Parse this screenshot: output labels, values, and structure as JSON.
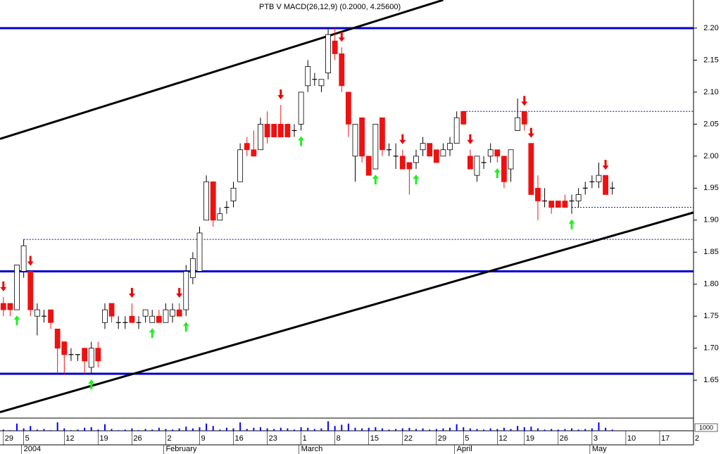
{
  "chart_data": {
    "type": "candlestick",
    "title": "PTB V MACD(26,12,9) (0.2000, 4.25600)",
    "xlim": [
      -0.5,
      102
    ],
    "xticks": [
      {
        "value": 0,
        "label": "29"
      },
      {
        "value": 3,
        "label": "5"
      },
      {
        "value": 9,
        "label": "12"
      },
      {
        "value": 14,
        "label": "19"
      },
      {
        "value": 19,
        "label": "26"
      },
      {
        "value": 24,
        "label": "2"
      },
      {
        "value": 29,
        "label": "9"
      },
      {
        "value": 34,
        "label": "16"
      },
      {
        "value": 39,
        "label": "23"
      },
      {
        "value": 44,
        "label": "1"
      },
      {
        "value": 49,
        "label": "8"
      },
      {
        "value": 54,
        "label": "15"
      },
      {
        "value": 59,
        "label": "22"
      },
      {
        "value": 64,
        "label": "29"
      },
      {
        "value": 68,
        "label": "5"
      },
      {
        "value": 73,
        "label": "12"
      },
      {
        "value": 77,
        "label": "19"
      },
      {
        "value": 82,
        "label": "26"
      },
      {
        "value": 87,
        "label": "3"
      },
      {
        "value": 92,
        "label": "10"
      },
      {
        "value": 97,
        "label": "17"
      },
      {
        "value": 102,
        "label": "2"
      }
    ],
    "months": [
      {
        "value": 3,
        "label": "2004"
      },
      {
        "value": 24,
        "label": "February"
      },
      {
        "value": 44,
        "label": "March"
      },
      {
        "value": 67,
        "label": "April"
      },
      {
        "value": 87,
        "label": "May"
      }
    ],
    "ylim": [
      1.6,
      2.24
    ],
    "yticks": [
      {
        "value": 2.2,
        "label": "2.20"
      },
      2.15,
      {
        "value": 2.1,
        "label": "2.10"
      },
      2.05,
      {
        "value": 2.0,
        "label": "2.00"
      },
      1.95,
      {
        "value": 1.9,
        "label": "1.90"
      },
      1.85,
      {
        "value": 1.8,
        "label": "1.80"
      },
      1.75,
      {
        "value": 1.7,
        "label": "1.70"
      },
      1.65
    ],
    "up_color": "#ffffff",
    "down_color": "#ee1111",
    "open": [
      1.77,
      1.77,
      1.76,
      1.82,
      1.82,
      1.75,
      1.75,
      1.76,
      1.73,
      1.71,
      1.69,
      1.69,
      1.7,
      1.67,
      1.7,
      1.74,
      1.77,
      1.74,
      1.74,
      1.75,
      1.74,
      1.75,
      1.74,
      1.75,
      1.74,
      1.75,
      1.76,
      1.76,
      1.81,
      1.82,
      1.9,
      1.96,
      1.9,
      1.92,
      1.93,
      1.96,
      2.02,
      2.01,
      2.01,
      2.05,
      2.05,
      2.05,
      2.05,
      2.04,
      2.05,
      2.11,
      2.12,
      2.11,
      2.13,
      2.18,
      2.16,
      2.1,
      2.0,
      2.06,
      2.0,
      1.98,
      2.06,
      2.01,
      2.0,
      2.0,
      1.99,
      1.99,
      2.01,
      2.02,
      2.01,
      2.0,
      2.01,
      2.02,
      2.07,
      2.0,
      1.97,
      1.99,
      2.0,
      2.01,
      2.0,
      1.98,
      2.04,
      2.07,
      2.02,
      1.95,
      1.93,
      1.93,
      1.93,
      1.93,
      1.93,
      1.93,
      1.95,
      1.96,
      1.96,
      1.97,
      1.95
    ],
    "high": [
      1.78,
      1.77,
      1.83,
      1.87,
      1.82,
      1.77,
      1.76,
      1.76,
      1.73,
      1.71,
      1.7,
      1.69,
      1.7,
      1.71,
      1.71,
      1.77,
      1.77,
      1.75,
      1.75,
      1.77,
      1.75,
      1.76,
      1.76,
      1.76,
      1.77,
      1.77,
      1.77,
      1.83,
      1.85,
      1.89,
      1.97,
      1.96,
      1.92,
      1.93,
      1.96,
      2.02,
      2.03,
      2.04,
      2.06,
      2.07,
      2.05,
      2.08,
      2.05,
      2.05,
      2.1,
      2.15,
      2.13,
      2.12,
      2.2,
      2.2,
      2.17,
      2.1,
      2.05,
      2.06,
      2.0,
      2.05,
      2.06,
      2.02,
      2.02,
      2.01,
      1.99,
      2.01,
      2.03,
      2.02,
      2.01,
      2.02,
      2.03,
      2.07,
      2.07,
      2.01,
      2.0,
      2.0,
      2.02,
      2.01,
      2.0,
      2.01,
      2.09,
      2.07,
      2.02,
      1.97,
      1.95,
      1.93,
      1.93,
      1.94,
      1.94,
      1.95,
      1.96,
      1.97,
      1.99,
      1.97,
      1.96
    ],
    "low": [
      1.75,
      1.75,
      1.76,
      1.81,
      1.75,
      1.72,
      1.74,
      1.73,
      1.66,
      1.66,
      1.68,
      1.68,
      1.66,
      1.66,
      1.67,
      1.73,
      1.74,
      1.73,
      1.73,
      1.74,
      1.73,
      1.74,
      1.74,
      1.74,
      1.74,
      1.74,
      1.75,
      1.75,
      1.8,
      1.82,
      1.9,
      1.89,
      1.9,
      1.91,
      1.92,
      1.96,
      2.0,
      2.0,
      2.01,
      2.02,
      2.03,
      2.03,
      2.03,
      2.03,
      2.04,
      2.1,
      2.11,
      2.1,
      2.12,
      2.15,
      2.1,
      2.03,
      1.96,
      1.99,
      1.97,
      1.98,
      2.0,
      2.0,
      1.98,
      1.98,
      1.94,
      1.98,
      2.0,
      2.0,
      1.99,
      2.0,
      2.0,
      2.02,
      2.05,
      1.98,
      1.96,
      1.98,
      1.99,
      1.99,
      1.95,
      1.96,
      2.04,
      2.04,
      1.94,
      1.9,
      1.92,
      1.91,
      1.92,
      1.92,
      1.91,
      1.92,
      1.94,
      1.95,
      1.95,
      1.94,
      1.94
    ],
    "close": [
      1.76,
      1.76,
      1.83,
      1.86,
      1.76,
      1.76,
      1.75,
      1.74,
      1.7,
      1.69,
      1.69,
      1.69,
      1.68,
      1.7,
      1.68,
      1.76,
      1.75,
      1.74,
      1.74,
      1.74,
      1.74,
      1.76,
      1.75,
      1.74,
      1.76,
      1.76,
      1.75,
      1.82,
      1.84,
      1.88,
      1.96,
      1.9,
      1.91,
      1.92,
      1.95,
      2.01,
      2.01,
      2.0,
      2.05,
      2.03,
      2.03,
      2.03,
      2.03,
      2.04,
      2.1,
      2.14,
      2.12,
      2.12,
      2.19,
      2.16,
      2.11,
      2.05,
      2.05,
      2.0,
      1.97,
      2.05,
      2.01,
      2.01,
      2.0,
      1.98,
      1.98,
      2.0,
      2.02,
      2.0,
      1.99,
      2.01,
      2.02,
      2.06,
      2.05,
      1.98,
      2.0,
      1.99,
      2.01,
      2.0,
      1.96,
      2.01,
      2.06,
      2.05,
      1.94,
      1.93,
      1.93,
      1.92,
      1.92,
      1.92,
      1.93,
      1.94,
      1.95,
      1.96,
      1.97,
      1.94,
      1.95
    ],
    "sell_signals": [
      0,
      4,
      19,
      26,
      41,
      50,
      59,
      69,
      77,
      78,
      89
    ],
    "buy_signals": [
      2,
      13,
      22,
      27,
      44,
      55,
      61,
      73,
      84
    ],
    "levels": [
      2.2,
      1.82,
      1.66
    ],
    "level_color": "#0000cc",
    "dashed_levels": [
      {
        "value": 2.07,
        "from": 68
      },
      {
        "value": 1.92,
        "from": 84
      },
      {
        "value": 1.87,
        "from": 3
      }
    ],
    "trendlines": [
      {
        "x": [
          -0.5,
          65
        ],
        "y": [
          2.027,
          2.244
        ]
      },
      {
        "x": [
          -0.5,
          102
        ],
        "y": [
          1.6,
          1.912
        ]
      }
    ],
    "volume_label": "1000",
    "volume_ylim": [
      0,
      100
    ],
    "volume": [
      10,
      5,
      60,
      20,
      40,
      10,
      15,
      5,
      70,
      20,
      5,
      10,
      25,
      30,
      10,
      55,
      15,
      5,
      10,
      20,
      5,
      15,
      10,
      25,
      15,
      10,
      20,
      35,
      20,
      30,
      60,
      40,
      10,
      25,
      20,
      70,
      15,
      25,
      30,
      20,
      15,
      25,
      20,
      10,
      30,
      25,
      15,
      20,
      80,
      40,
      50,
      60,
      25,
      20,
      25,
      30,
      20,
      10,
      15,
      20,
      25,
      15,
      20,
      10,
      15,
      20,
      25,
      55,
      30,
      20,
      15,
      10,
      20,
      15,
      25,
      15,
      40,
      30,
      35,
      20,
      10,
      15,
      10,
      15,
      20,
      10,
      15,
      20,
      70,
      25,
      10
    ],
    "volume_color": "#0000ff"
  }
}
